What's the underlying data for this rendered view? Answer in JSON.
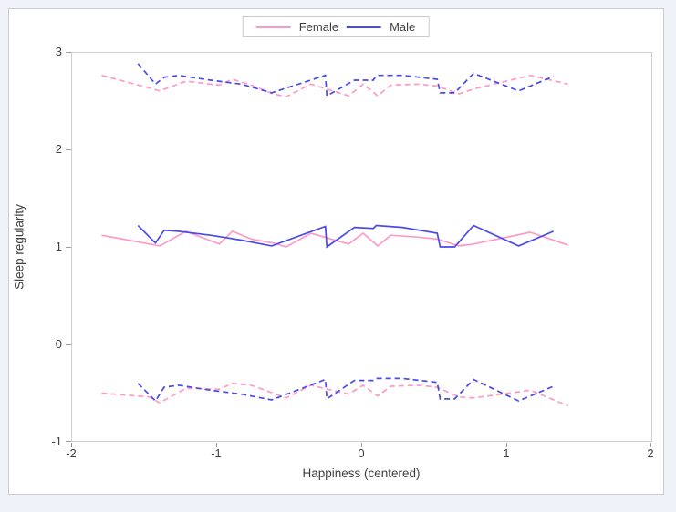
{
  "page": {
    "background": "#eff2f9",
    "panel_background": "#ffffff",
    "panel_border": "#c9cbd0",
    "text_color": "#3f3f42"
  },
  "legend": {
    "position": "top-center",
    "items": [
      {
        "label": "Female",
        "color": "#ff99c7"
      },
      {
        "label": "Male",
        "color": "#4a4aeb"
      }
    ]
  },
  "axes": {
    "x_title": "Happiness (centered)",
    "y_title": "Sleep regularity",
    "x_tick_labels": [
      "-2",
      "-1",
      "0",
      "1",
      "2"
    ],
    "y_tick_labels": [
      "3",
      "2",
      "1",
      "0",
      "-1"
    ]
  },
  "chart_data": {
    "type": "line",
    "title": "",
    "xlabel": "Happiness (centered)",
    "ylabel": "Sleep regularity",
    "xlim": [
      -2,
      2
    ],
    "ylim": [
      -1,
      3
    ],
    "x_ticks": [
      -2,
      -1,
      0,
      1,
      2
    ],
    "y_ticks": [
      -1,
      0,
      1,
      2,
      3
    ],
    "grid": false,
    "legend_position": "top-center",
    "description": "Fitted lines (solid) with dashed upper/lower confidence limits for sleep regularity vs centered happiness, grouped by gender",
    "series": [
      {
        "name": "Female upper CL",
        "group": "Female",
        "style": "dashed",
        "color": "#ff99c7",
        "x": [
          -1.79,
          -1.46,
          -1.39,
          -1.21,
          -0.98,
          -0.89,
          -0.76,
          -0.61,
          -0.52,
          -0.35,
          -0.09,
          0.01,
          0.11,
          0.2,
          0.39,
          0.52,
          0.67,
          0.77,
          1.16,
          1.42
        ],
        "y": [
          2.76,
          2.63,
          2.6,
          2.7,
          2.66,
          2.72,
          2.66,
          2.57,
          2.54,
          2.67,
          2.55,
          2.67,
          2.55,
          2.66,
          2.67,
          2.65,
          2.57,
          2.62,
          2.76,
          2.67
        ]
      },
      {
        "name": "Male upper CL",
        "group": "Male",
        "style": "dashed",
        "color": "#4a4aeb",
        "x": [
          -1.54,
          -1.42,
          -1.36,
          -1.26,
          -1.04,
          -0.83,
          -0.62,
          -0.25,
          -0.24,
          -0.05,
          0.08,
          0.1,
          0.28,
          0.52,
          0.54,
          0.64,
          0.77,
          1.08,
          1.32
        ],
        "y": [
          2.88,
          2.67,
          2.74,
          2.76,
          2.71,
          2.67,
          2.58,
          2.76,
          2.55,
          2.71,
          2.71,
          2.76,
          2.76,
          2.72,
          2.58,
          2.58,
          2.78,
          2.6,
          2.75
        ]
      },
      {
        "name": "Female lower CL",
        "group": "Female",
        "style": "dashed",
        "color": "#ff99c7",
        "x": [
          -1.79,
          -1.46,
          -1.39,
          -1.21,
          -0.98,
          -0.89,
          -0.76,
          -0.61,
          -0.52,
          -0.35,
          -0.09,
          0.01,
          0.11,
          0.2,
          0.39,
          0.52,
          0.67,
          0.77,
          1.16,
          1.42
        ],
        "y": [
          -0.5,
          -0.54,
          -0.6,
          -0.45,
          -0.46,
          -0.4,
          -0.42,
          -0.5,
          -0.55,
          -0.42,
          -0.51,
          -0.42,
          -0.53,
          -0.43,
          -0.42,
          -0.44,
          -0.54,
          -0.55,
          -0.47,
          -0.63
        ]
      },
      {
        "name": "Male lower CL",
        "group": "Male",
        "style": "dashed",
        "color": "#4a4aeb",
        "x": [
          -1.54,
          -1.42,
          -1.36,
          -1.26,
          -1.04,
          -0.83,
          -0.62,
          -0.25,
          -0.24,
          -0.05,
          0.08,
          0.1,
          0.28,
          0.52,
          0.54,
          0.64,
          0.77,
          1.08,
          1.32
        ],
        "y": [
          -0.4,
          -0.58,
          -0.44,
          -0.42,
          -0.47,
          -0.51,
          -0.57,
          -0.36,
          -0.56,
          -0.37,
          -0.37,
          -0.35,
          -0.35,
          -0.39,
          -0.56,
          -0.56,
          -0.36,
          -0.58,
          -0.43
        ]
      },
      {
        "name": "Female fit",
        "group": "Female",
        "style": "solid",
        "color": "#ff99c7",
        "x": [
          -1.79,
          -1.46,
          -1.39,
          -1.21,
          -0.98,
          -0.89,
          -0.76,
          -0.61,
          -0.52,
          -0.35,
          -0.09,
          0.01,
          0.11,
          0.2,
          0.39,
          0.52,
          0.67,
          0.77,
          1.16,
          1.42
        ],
        "y": [
          1.12,
          1.03,
          1.01,
          1.16,
          1.03,
          1.16,
          1.08,
          1.04,
          1.0,
          1.14,
          1.03,
          1.14,
          1.01,
          1.12,
          1.1,
          1.08,
          1.01,
          1.03,
          1.15,
          1.02
        ]
      },
      {
        "name": "Male fit",
        "group": "Male",
        "style": "solid",
        "color": "#4a4aeb",
        "x": [
          -1.54,
          -1.42,
          -1.36,
          -1.26,
          -1.04,
          -0.83,
          -0.62,
          -0.25,
          -0.24,
          -0.05,
          0.08,
          0.1,
          0.28,
          0.52,
          0.54,
          0.64,
          0.77,
          1.08,
          1.32
        ],
        "y": [
          1.22,
          1.04,
          1.17,
          1.16,
          1.12,
          1.07,
          1.01,
          1.21,
          1.0,
          1.2,
          1.19,
          1.22,
          1.2,
          1.14,
          1.0,
          1.0,
          1.22,
          1.01,
          1.16
        ]
      }
    ]
  }
}
